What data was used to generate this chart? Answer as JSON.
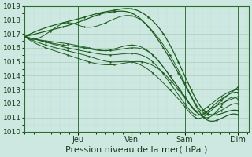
{
  "xlabel": "Pression niveau de la mer( hPa )",
  "bg_color": "#cde8e0",
  "grid_color_major": "#aaccbb",
  "grid_color_minor": "#c0ddd5",
  "line_color": "#1a5c1a",
  "ylim": [
    1010,
    1019
  ],
  "yticks": [
    1010,
    1011,
    1012,
    1013,
    1014,
    1015,
    1016,
    1017,
    1018,
    1019
  ],
  "day_labels": [
    "Jeu",
    "Ven",
    "Sam",
    "Dim"
  ],
  "xlabel_fontsize": 8,
  "ytick_fontsize": 6.5,
  "xtick_fontsize": 7,
  "lines": [
    {
      "x": [
        0.0,
        0.18,
        0.28,
        0.35,
        0.42,
        0.5,
        0.58,
        0.65,
        0.72,
        0.78,
        0.84,
        0.9,
        1.0
      ],
      "y": [
        1016.8,
        1017.8,
        1018.2,
        1018.5,
        1018.7,
        1018.8,
        1018.2,
        1017.0,
        1015.0,
        1013.0,
        1011.5,
        1011.2,
        1011.5
      ]
    },
    {
      "x": [
        0.0,
        0.18,
        0.28,
        0.35,
        0.42,
        0.5,
        0.58,
        0.65,
        0.72,
        0.78,
        0.84,
        0.9,
        1.0
      ],
      "y": [
        1016.8,
        1017.5,
        1018.0,
        1018.4,
        1018.6,
        1018.5,
        1017.5,
        1016.0,
        1014.2,
        1012.5,
        1011.0,
        1010.8,
        1011.2
      ]
    },
    {
      "x": [
        0.0,
        0.12,
        0.2,
        0.28,
        0.38,
        0.5,
        0.6,
        0.68,
        0.75,
        0.8,
        0.86,
        0.92,
        1.0
      ],
      "y": [
        1016.8,
        1017.2,
        1017.8,
        1017.5,
        1017.8,
        1018.3,
        1017.2,
        1015.5,
        1013.5,
        1012.0,
        1011.2,
        1011.5,
        1012.0
      ]
    },
    {
      "x": [
        0.0,
        0.1,
        0.2,
        0.3,
        0.4,
        0.5,
        0.6,
        0.68,
        0.75,
        0.8,
        0.86,
        0.92,
        1.0
      ],
      "y": [
        1016.8,
        1016.5,
        1016.3,
        1016.0,
        1015.8,
        1016.0,
        1015.5,
        1014.0,
        1012.5,
        1011.5,
        1011.0,
        1011.8,
        1012.3
      ]
    },
    {
      "x": [
        0.0,
        0.1,
        0.2,
        0.3,
        0.4,
        0.5,
        0.6,
        0.68,
        0.75,
        0.8,
        0.86,
        0.92,
        1.0
      ],
      "y": [
        1016.8,
        1016.4,
        1016.0,
        1015.7,
        1015.5,
        1015.6,
        1015.0,
        1013.5,
        1012.0,
        1011.2,
        1011.5,
        1012.0,
        1012.5
      ]
    },
    {
      "x": [
        0.0,
        0.1,
        0.2,
        0.3,
        0.4,
        0.5,
        0.6,
        0.68,
        0.75,
        0.8,
        0.86,
        0.92,
        1.0
      ],
      "y": [
        1016.8,
        1016.2,
        1015.8,
        1015.4,
        1015.0,
        1015.0,
        1014.2,
        1013.0,
        1011.8,
        1011.0,
        1011.3,
        1012.2,
        1012.8
      ]
    },
    {
      "x": [
        0.0,
        0.08,
        0.18,
        0.28,
        0.38,
        0.5,
        0.6,
        0.68,
        0.75,
        0.8,
        0.86,
        0.92,
        1.0
      ],
      "y": [
        1016.8,
        1016.5,
        1016.2,
        1016.0,
        1015.8,
        1016.2,
        1015.5,
        1014.0,
        1012.5,
        1011.5,
        1011.8,
        1012.5,
        1013.0
      ]
    },
    {
      "x": [
        0.0,
        0.1,
        0.2,
        0.3,
        0.42,
        0.55,
        0.65,
        0.72,
        0.78,
        0.83,
        0.88,
        0.94,
        1.0
      ],
      "y": [
        1016.8,
        1016.0,
        1015.5,
        1015.0,
        1014.8,
        1015.0,
        1014.2,
        1013.0,
        1011.8,
        1011.2,
        1011.8,
        1012.5,
        1013.2
      ]
    }
  ],
  "markers": [
    {
      "x": [
        0.0,
        0.18,
        0.28,
        0.35,
        0.42,
        0.5,
        0.58,
        0.65,
        0.72,
        0.78,
        0.84,
        0.9,
        1.0
      ],
      "y": [
        1016.8,
        1017.8,
        1018.2,
        1018.5,
        1018.7,
        1018.8,
        1018.2,
        1017.0,
        1015.0,
        1013.0,
        1011.5,
        1011.2,
        1011.5
      ]
    },
    {
      "x": [
        0.0,
        0.12,
        0.2,
        0.28,
        0.38,
        0.5,
        0.6,
        0.68,
        0.75,
        0.8,
        0.86,
        0.92,
        1.0
      ],
      "y": [
        1016.8,
        1017.2,
        1017.8,
        1017.5,
        1017.8,
        1018.3,
        1017.2,
        1015.5,
        1013.5,
        1012.0,
        1011.2,
        1011.5,
        1012.0
      ]
    }
  ]
}
